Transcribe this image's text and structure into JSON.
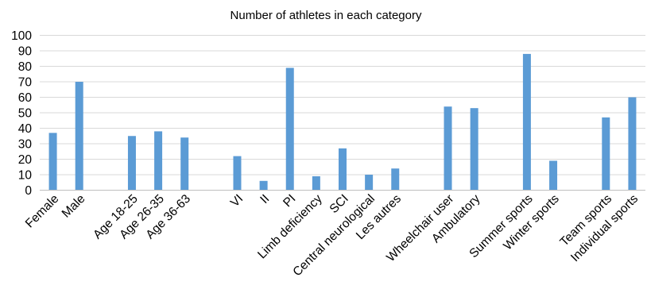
{
  "chart_data": {
    "type": "bar",
    "title": "Number of athletes in each category",
    "xlabel": "",
    "ylabel": "",
    "ylim": [
      0,
      100
    ],
    "yticks": [
      0,
      10,
      20,
      30,
      40,
      50,
      60,
      70,
      80,
      90,
      100
    ],
    "grid": true,
    "legend": "none",
    "bar_color": "#5b9bd5",
    "categories": [
      "Female",
      "Male",
      "",
      "Age 18-25",
      "Age 26-35",
      "Age 36-63",
      "",
      "VI",
      "II",
      "PI",
      "Limb deficiency",
      "SCI",
      "Central neurological",
      "Les autres",
      "",
      "Wheelchair user",
      "Ambulatory",
      "",
      "Summer sports",
      "Winter sports",
      "",
      "Team sports",
      "Individual sports"
    ],
    "values": [
      37,
      70,
      null,
      35,
      38,
      34,
      null,
      22,
      6,
      79,
      9,
      27,
      10,
      14,
      null,
      54,
      53,
      null,
      88,
      19,
      null,
      47,
      60
    ]
  }
}
